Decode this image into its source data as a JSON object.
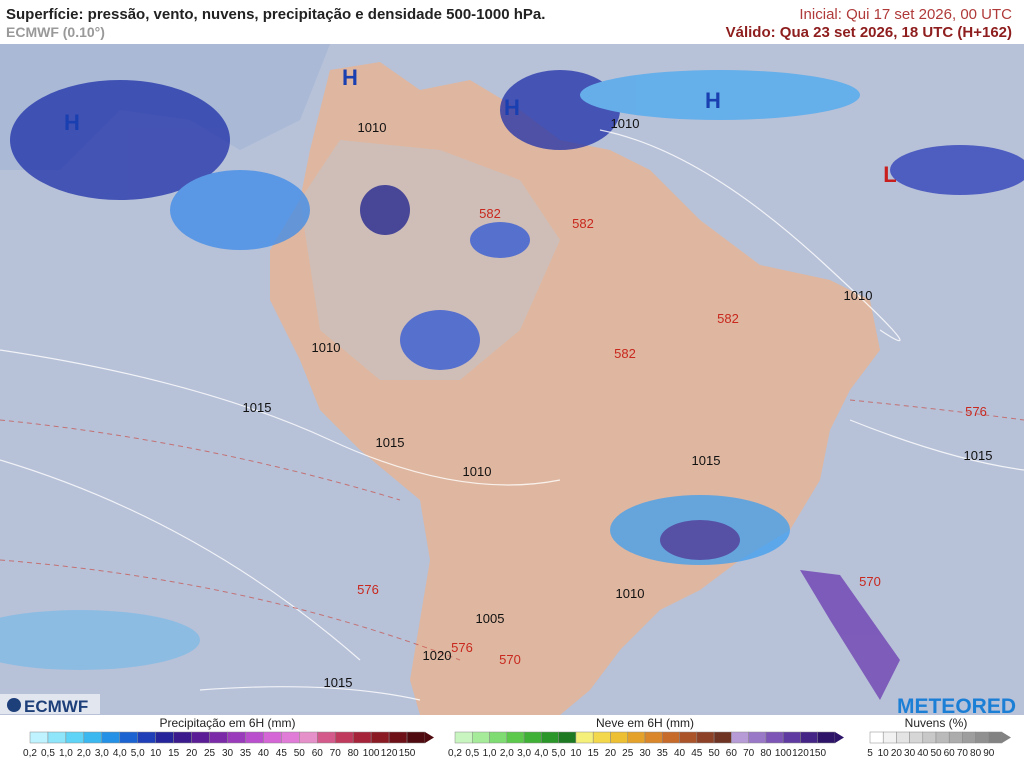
{
  "header": {
    "title": "Superfície: pressão, vento, nuvens, precipitação e densidade 500-1000 hPa.",
    "model": "ECMWF (0.10°)",
    "initial": "Inicial: Qui 17 set 2026, 00 UTC",
    "valid": "Válido: Qua 23 set 2026, 18 UTC (H+162)"
  },
  "map": {
    "pressure_systems": [
      "H",
      "H",
      "H",
      "H",
      "L"
    ],
    "isobar_labels": [
      "1010",
      "1010",
      "1010",
      "1010",
      "1015",
      "1015",
      "1015",
      "1010",
      "1015",
      "1010",
      "1005",
      "1020",
      "1015"
    ],
    "thickness_labels": [
      "582",
      "582",
      "582",
      "582",
      "576",
      "576",
      "576",
      "570",
      "570"
    ]
  },
  "logos": {
    "left": "ECMWF",
    "right": "METEORED"
  },
  "legends": [
    {
      "title": "Precipitação em 6H (mm)",
      "ticks": [
        "0,2",
        "0,5",
        "1,0",
        "2,0",
        "3,0",
        "4,0",
        "5,0",
        "10",
        "15",
        "20",
        "25",
        "30",
        "35",
        "40",
        "45",
        "50",
        "60",
        "70",
        "80",
        "100",
        "120",
        "150"
      ],
      "colors": [
        "#bff3ff",
        "#8fe6fb",
        "#5fd4f6",
        "#3bb8f0",
        "#2591e6",
        "#1c63d2",
        "#1f3fb8",
        "#26249a",
        "#3a1a8c",
        "#5a1d96",
        "#7b2aa8",
        "#9a3bbb",
        "#b94fcc",
        "#d466d6",
        "#e07cd8",
        "#e690c9",
        "#d45a8c",
        "#c03a5e",
        "#a5243a",
        "#8a1a24",
        "#6d1018",
        "#4e0a0f"
      ]
    },
    {
      "title": "Neve em 6H (mm)",
      "ticks": [
        "0,2",
        "0,5",
        "1,0",
        "2,0",
        "3,0",
        "4,0",
        "5,0",
        "10",
        "15",
        "20",
        "25",
        "30",
        "35",
        "40",
        "45",
        "50",
        "60",
        "70",
        "80",
        "100",
        "120",
        "150"
      ],
      "colors": [
        "#c8f5c0",
        "#a5eb9a",
        "#7fdc72",
        "#5cc94d",
        "#3fb136",
        "#2b962a",
        "#1e7a22",
        "#f5f07a",
        "#f2d84a",
        "#edbf33",
        "#e5a22a",
        "#d9872a",
        "#c66b2a",
        "#ab542a",
        "#8d4227",
        "#6e3322",
        "#b79bd6",
        "#9a78c8",
        "#7c55b6",
        "#5f3aa0",
        "#452686",
        "#2d1468"
      ]
    },
    {
      "title": "Nuvens (%)",
      "ticks": [
        "5",
        "10",
        "20",
        "30",
        "40",
        "50",
        "60",
        "70",
        "80",
        "90"
      ],
      "colors": [
        "#ffffff",
        "#f2f2f2",
        "#e4e4e4",
        "#d6d6d6",
        "#c8c8c8",
        "#bababa",
        "#acacac",
        "#9e9e9e",
        "#909090",
        "#828282"
      ]
    }
  ]
}
